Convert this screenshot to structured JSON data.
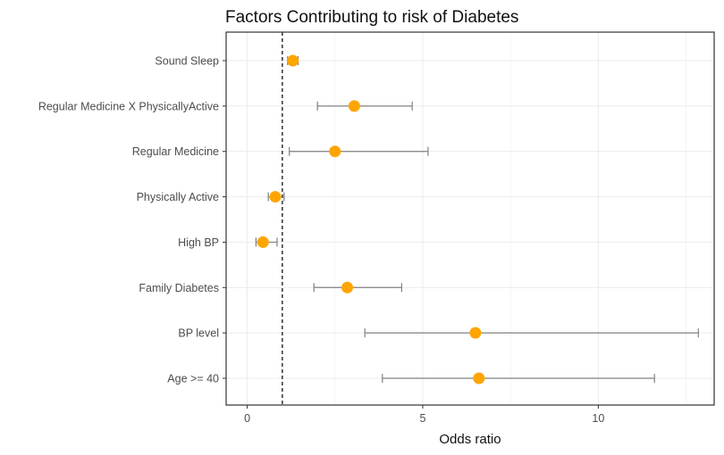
{
  "chart_data": {
    "type": "scatter",
    "subtype": "forest-plot",
    "title": "Factors Contributing to risk of Diabetes",
    "xlabel": "Odds ratio",
    "ylabel": "",
    "xlim": [
      -0.6,
      13.3
    ],
    "xticks": [
      0,
      5,
      10
    ],
    "reference_line": {
      "x": 1,
      "style": "dashed"
    },
    "grid": true,
    "point_color": "#FFA500",
    "errorbar_color": "#808080",
    "categories": [
      "Sound Sleep",
      "Regular Medicine X PhysicallyActive",
      "Regular Medicine",
      "Physically Active",
      "High BP",
      "Family Diabetes",
      "BP level",
      "Age >= 40"
    ],
    "values": [
      1.3,
      3.05,
      2.5,
      0.8,
      0.45,
      2.85,
      6.5,
      6.6
    ],
    "lower": [
      1.15,
      2.0,
      1.2,
      0.6,
      0.25,
      1.9,
      3.35,
      3.85
    ],
    "upper": [
      1.45,
      4.7,
      5.15,
      1.05,
      0.85,
      4.4,
      12.85,
      11.6
    ]
  }
}
